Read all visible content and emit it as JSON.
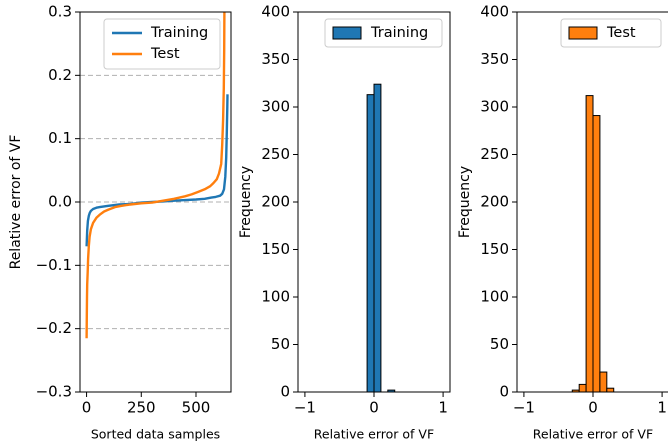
{
  "chart_data": [
    {
      "type": "line",
      "title": "",
      "xlabel": "Sorted data samples",
      "ylabel": "Relative error of VF",
      "xlim": [
        -30,
        660
      ],
      "ylim": [
        -0.3,
        0.3
      ],
      "xticks": [
        0,
        250,
        500
      ],
      "xtick_labels": [
        "0",
        "250",
        "500"
      ],
      "yticks": [
        -0.3,
        -0.2,
        -0.1,
        0.0,
        0.1,
        0.2,
        0.3
      ],
      "ytick_labels": [
        "−0.3",
        "−0.2",
        "−0.1",
        "0.0",
        "0.1",
        "0.2",
        "0.3"
      ],
      "grid": "horizontal dashed at each y tick",
      "legend_position": "upper-center",
      "series": [
        {
          "name": "Training",
          "color": "#1f77b4",
          "x": [
            0,
            3,
            6,
            10,
            15,
            20,
            30,
            45,
            60,
            100,
            150,
            200,
            250,
            300,
            350,
            400,
            450,
            500,
            540,
            570,
            590,
            610,
            620,
            628,
            634,
            638,
            641,
            643,
            644
          ],
          "y": [
            -0.07,
            -0.045,
            -0.03,
            -0.022,
            -0.017,
            -0.014,
            -0.011,
            -0.009,
            -0.008,
            -0.006,
            -0.004,
            -0.003,
            -0.001,
            0.0,
            0.001,
            0.002,
            0.003,
            0.004,
            0.005,
            0.007,
            0.008,
            0.01,
            0.013,
            0.02,
            0.04,
            0.07,
            0.11,
            0.15,
            0.17
          ]
        },
        {
          "name": "Test",
          "color": "#ff7f0e",
          "x": [
            0,
            1,
            2,
            3,
            5,
            7,
            10,
            14,
            20,
            30,
            45,
            60,
            80,
            100,
            130,
            160,
            200,
            250,
            300,
            350,
            400,
            450,
            480,
            510,
            540,
            565,
            580,
            595,
            605,
            615,
            620,
            624,
            627,
            629,
            630
          ],
          "y": [
            -0.215,
            -0.18,
            -0.15,
            -0.13,
            -0.11,
            -0.09,
            -0.07,
            -0.055,
            -0.043,
            -0.033,
            -0.025,
            -0.02,
            -0.015,
            -0.012,
            -0.008,
            -0.006,
            -0.004,
            -0.002,
            -0.001,
            0.002,
            0.005,
            0.009,
            0.012,
            0.016,
            0.02,
            0.025,
            0.03,
            0.036,
            0.045,
            0.06,
            0.09,
            0.13,
            0.18,
            0.24,
            0.3
          ]
        }
      ]
    },
    {
      "type": "bar",
      "title": "",
      "xlabel": "Relative error of VF",
      "ylabel": "Frequency",
      "xlim": [
        -1.1,
        1.1
      ],
      "ylim": [
        0,
        400
      ],
      "xticks": [
        -1,
        0,
        1
      ],
      "xtick_labels": [
        "−1",
        "0",
        "1"
      ],
      "yticks": [
        0,
        50,
        100,
        150,
        200,
        250,
        300,
        350,
        400
      ],
      "ytick_labels": [
        "0",
        "50",
        "100",
        "150",
        "200",
        "250",
        "300",
        "350",
        "400"
      ],
      "grid": "off",
      "legend_position": "upper-right",
      "series": [
        {
          "name": "Training",
          "color": "#1f77b4",
          "bin_edges": [
            -0.1,
            0.0,
            0.1,
            0.2,
            0.3
          ],
          "values": [
            313,
            324,
            0,
            2
          ]
        }
      ]
    },
    {
      "type": "bar",
      "title": "",
      "xlabel": "Relative error of VF",
      "ylabel": "Frequency",
      "xlim": [
        -1.1,
        1.1
      ],
      "ylim": [
        0,
        400
      ],
      "xticks": [
        -1,
        0,
        1
      ],
      "xtick_labels": [
        "−1",
        "0",
        "1"
      ],
      "yticks": [
        0,
        50,
        100,
        150,
        200,
        250,
        300,
        350,
        400
      ],
      "ytick_labels": [
        "0",
        "50",
        "100",
        "150",
        "200",
        "250",
        "300",
        "350",
        "400"
      ],
      "grid": "off",
      "legend_position": "upper-right",
      "series": [
        {
          "name": "Test",
          "color": "#ff7f0e",
          "bin_edges": [
            -0.3,
            -0.2,
            -0.1,
            0.0,
            0.1,
            0.2,
            0.3
          ],
          "values": [
            2,
            8,
            312,
            291,
            21,
            4
          ]
        }
      ]
    }
  ]
}
